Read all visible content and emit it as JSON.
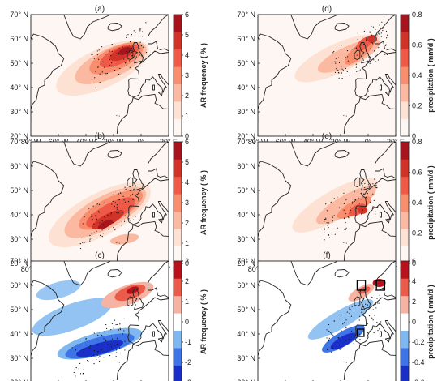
{
  "colorbars": {
    "freq": {
      "label": "AR frequency ( % )",
      "ticks": [
        "0",
        "1",
        "2",
        "3",
        "4",
        "5",
        "6"
      ],
      "colors": [
        "#fef6f2",
        "#fde1d3",
        "#fcb9a1",
        "#f88e6e",
        "#ee5a47",
        "#d23329",
        "#a8141e"
      ]
    },
    "precip": {
      "label": "precipitation ( mm/d )",
      "ticks": [
        "0",
        "0.2",
        "0.4",
        "0.6",
        "0.8"
      ],
      "colors": [
        "#fef6f2",
        "#fde1d3",
        "#fcb9a1",
        "#f88e6e",
        "#ee5a47",
        "#d23329",
        "#a8141e"
      ]
    },
    "freq_diff": {
      "label": "AR frequency ( % )",
      "ticks": [
        "-3",
        "-2",
        "-1",
        "0",
        "1",
        "2",
        "3"
      ],
      "colors": [
        "#1a2fc8",
        "#3e74e6",
        "#7fb8f0",
        "#ffffff",
        "#f7b3a1",
        "#ea5b4a",
        "#b8121c"
      ]
    },
    "precip_diff": {
      "label": "precipitation ( mm/d )",
      "ticks": [
        "-0.6",
        "-0.4",
        "-0.2",
        "0",
        "2",
        "4",
        "6"
      ],
      "colors": [
        "#1a2fc8",
        "#3e74e6",
        "#7fb8f0",
        "#ffffff",
        "#f7b3a1",
        "#ea5b4a",
        "#b8121c"
      ]
    }
  },
  "axes": {
    "lat_labels": [
      "20° N",
      "30° N",
      "40° N",
      "50° N",
      "60° N",
      "70° N"
    ],
    "lon_labels": [
      "80° W",
      "60° W",
      "40° W",
      "20° W",
      "0°",
      "20° E"
    ]
  },
  "panels": [
    {
      "id": "a",
      "title": "(a)",
      "colorbar": "freq"
    },
    {
      "id": "b",
      "title": "(b)",
      "colorbar": "freq"
    },
    {
      "id": "c",
      "title": "(c)",
      "colorbar": "freq_diff"
    },
    {
      "id": "d",
      "title": "(d)",
      "colorbar": "precip"
    },
    {
      "id": "e",
      "title": "(e)",
      "colorbar": "precip"
    },
    {
      "id": "f",
      "title": "(f)",
      "colorbar": "precip_diff"
    }
  ]
}
